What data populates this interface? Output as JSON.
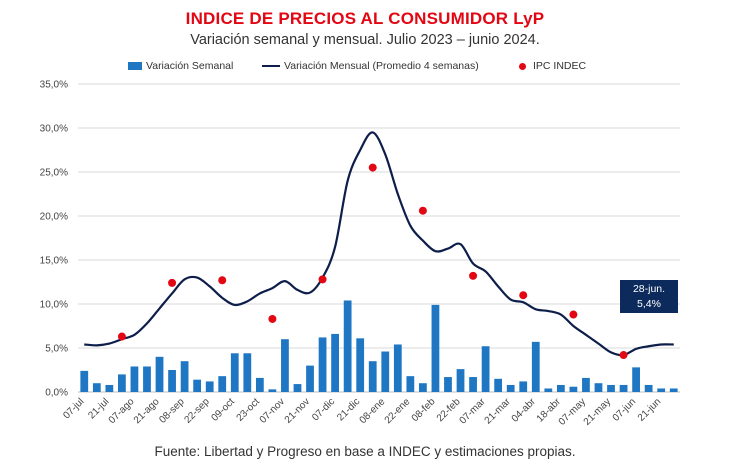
{
  "title": "INDICE DE PRECIOS AL CONSUMIDOR LyP",
  "subtitle": "Variación semanal y mensual. Julio 2023 – junio 2024.",
  "source": "Fuente: Libertad y Progreso en base a INDEC y estimaciones propias.",
  "legend": {
    "weekly": "Variación Semanal",
    "monthly": "Variación Mensual (Promedio 4 semanas)",
    "indec": "IPC INDEC"
  },
  "callout": {
    "date": "28-jun.",
    "value": "5,4%"
  },
  "colors": {
    "title": "#e30613",
    "bars": "#1f77c4",
    "line": "#0d1e4a",
    "dots": "#e30613",
    "callout": "#0d2a5c"
  },
  "chart_data": {
    "type": "bar",
    "ylim": [
      0,
      35
    ],
    "yticks": [
      "0,0%",
      "5,0%",
      "10,0%",
      "15,0%",
      "20,0%",
      "25,0%",
      "30,0%",
      "35,0%"
    ],
    "grid": true,
    "xtick_labels": [
      "07-jul",
      "21-jul",
      "07-ago",
      "21-ago",
      "08-sep",
      "22-sep",
      "09-oct",
      "23-oct",
      "07-nov",
      "21-nov",
      "07-dic",
      "21-dic",
      "08-ene",
      "22-ene",
      "08-feb",
      "22-feb",
      "07-mar",
      "21-mar",
      "04-abr",
      "18-abr",
      "07-may",
      "21-may",
      "07-jun",
      "21-jun"
    ],
    "series": [
      {
        "name": "Variación Semanal",
        "type": "bar",
        "values": [
          2.4,
          1.0,
          0.8,
          2.0,
          2.9,
          2.9,
          4.0,
          2.5,
          3.5,
          1.4,
          1.2,
          1.8,
          4.4,
          4.4,
          1.6,
          0.3,
          6.0,
          0.9,
          3.0,
          6.2,
          6.6,
          10.4,
          6.1,
          3.5,
          4.6,
          5.4,
          1.8,
          1.0,
          9.9,
          1.7,
          2.6,
          1.7,
          5.2,
          1.5,
          0.8,
          1.2,
          5.7,
          0.4,
          0.8,
          0.6,
          1.6,
          1.0,
          0.8,
          0.8,
          2.8,
          0.8,
          0.4,
          0.4
        ]
      },
      {
        "name": "Variación Mensual (Promedio 4 semanas)",
        "type": "line",
        "values": [
          5.4,
          5.3,
          5.5,
          6.0,
          6.5,
          7.8,
          9.5,
          11.2,
          12.8,
          13.0,
          12.0,
          10.7,
          9.9,
          10.3,
          11.2,
          11.8,
          12.6,
          11.6,
          11.3,
          13.0,
          16.5,
          24.0,
          27.5,
          29.5,
          27.0,
          22.5,
          18.9,
          17.2,
          16.0,
          16.3,
          16.8,
          14.6,
          13.7,
          12.0,
          10.5,
          10.2,
          9.4,
          9.2,
          8.8,
          7.5,
          6.5,
          5.5,
          4.5,
          4.2,
          4.9,
          5.2,
          5.4,
          5.4
        ]
      },
      {
        "name": "IPC INDEC",
        "type": "scatter",
        "points": [
          [
            3,
            6.3
          ],
          [
            7,
            12.4
          ],
          [
            11,
            12.7
          ],
          [
            15,
            8.3
          ],
          [
            19,
            12.8
          ],
          [
            23,
            25.5
          ],
          [
            27,
            20.6
          ],
          [
            31,
            13.2
          ],
          [
            35,
            11.0
          ],
          [
            39,
            8.8
          ],
          [
            43,
            4.2
          ]
        ]
      }
    ]
  }
}
